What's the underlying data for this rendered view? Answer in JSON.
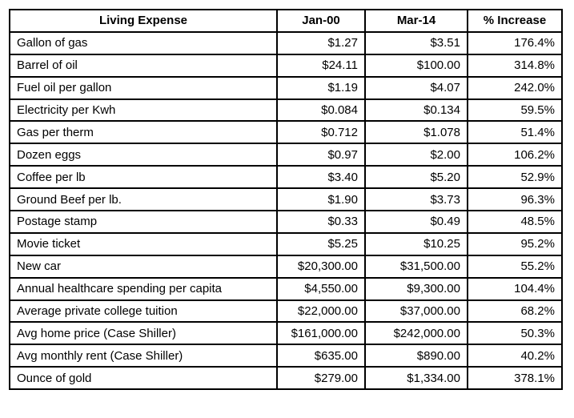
{
  "table": {
    "header": [
      "Living Expense",
      "Jan-00",
      "Mar-14",
      "% Increase"
    ],
    "rows": [
      [
        "Gallon of gas",
        "$1.27",
        "$3.51",
        "176.4%"
      ],
      [
        "Barrel of oil",
        "$24.11",
        "$100.00",
        "314.8%"
      ],
      [
        "Fuel oil per gallon",
        "$1.19",
        "$4.07",
        "242.0%"
      ],
      [
        "Electricity per Kwh",
        "$0.084",
        "$0.134",
        "59.5%"
      ],
      [
        "Gas per therm",
        "$0.712",
        "$1.078",
        "51.4%"
      ],
      [
        "Dozen eggs",
        "$0.97",
        "$2.00",
        "106.2%"
      ],
      [
        "Coffee per lb",
        "$3.40",
        "$5.20",
        "52.9%"
      ],
      [
        "Ground Beef per lb.",
        "$1.90",
        "$3.73",
        "96.3%"
      ],
      [
        "Postage stamp",
        "$0.33",
        "$0.49",
        "48.5%"
      ],
      [
        "Movie ticket",
        "$5.25",
        "$10.25",
        "95.2%"
      ],
      [
        "New car",
        "$20,300.00",
        "$31,500.00",
        "55.2%"
      ],
      [
        "Annual healthcare spending per capita",
        "$4,550.00",
        "$9,300.00",
        "104.4%"
      ],
      [
        "Average private college tuition",
        "$22,000.00",
        "$37,000.00",
        "68.2%"
      ],
      [
        "Avg home price (Case Shiller)",
        "$161,000.00",
        "$242,000.00",
        "50.3%"
      ],
      [
        "Avg monthly rent (Case Shiller)",
        "$635.00",
        "$890.00",
        "40.2%"
      ],
      [
        "Ounce of gold",
        "$279.00",
        "$1,334.00",
        "378.1%"
      ]
    ]
  }
}
